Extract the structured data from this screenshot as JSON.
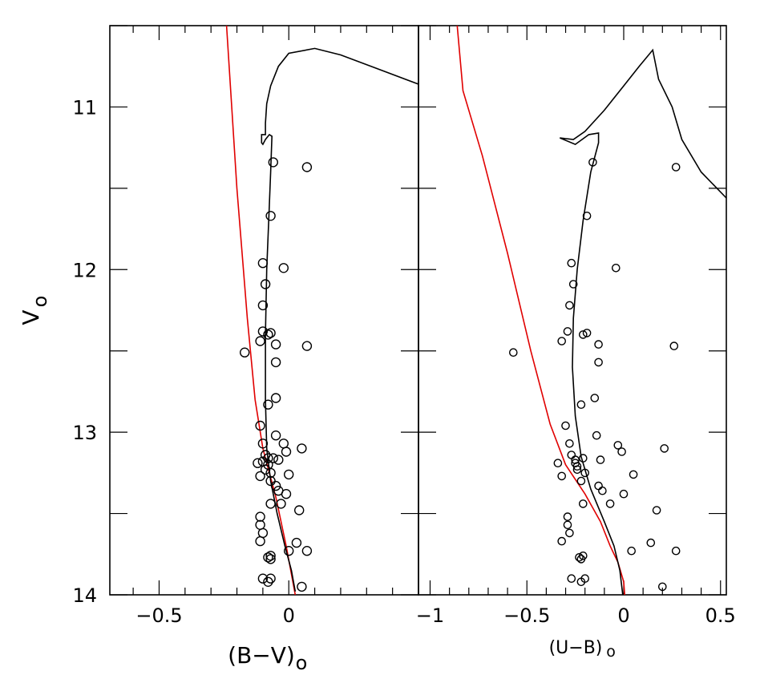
{
  "chart_data": [
    {
      "type": "scatter",
      "panel": "left",
      "xlabel": "(B−V)",
      "xlabel_subscript": "o",
      "ylabel": "V",
      "ylabel_subscript": "o",
      "xlim": [
        -0.69,
        0.5
      ],
      "ylim": [
        14.0,
        10.5
      ],
      "x_ticks_major": [
        -0.5,
        0
      ],
      "x_tick_labels": [
        "−0.5",
        "0"
      ],
      "y_ticks_major": [
        11,
        12,
        13,
        14
      ],
      "y_tick_labels": [
        "11",
        "12",
        "13",
        "14"
      ],
      "grid": false,
      "colors": {
        "isochrone": "#000000",
        "zams": "#e00000",
        "stars": "#000000"
      },
      "stars": [
        {
          "x": -0.06,
          "y": 11.34
        },
        {
          "x": 0.07,
          "y": 11.37
        },
        {
          "x": -0.07,
          "y": 11.67
        },
        {
          "x": -0.1,
          "y": 11.96
        },
        {
          "x": -0.02,
          "y": 11.99
        },
        {
          "x": -0.09,
          "y": 12.09
        },
        {
          "x": -0.1,
          "y": 12.22
        },
        {
          "x": -0.1,
          "y": 12.38
        },
        {
          "x": -0.07,
          "y": 12.39
        },
        {
          "x": -0.08,
          "y": 12.4
        },
        {
          "x": -0.11,
          "y": 12.44
        },
        {
          "x": -0.05,
          "y": 12.46
        },
        {
          "x": 0.07,
          "y": 12.47
        },
        {
          "x": -0.17,
          "y": 12.51
        },
        {
          "x": -0.05,
          "y": 12.57
        },
        {
          "x": -0.05,
          "y": 12.79
        },
        {
          "x": -0.08,
          "y": 12.83
        },
        {
          "x": -0.11,
          "y": 12.96
        },
        {
          "x": -0.05,
          "y": 13.02
        },
        {
          "x": -0.1,
          "y": 13.07
        },
        {
          "x": -0.02,
          "y": 13.07
        },
        {
          "x": 0.05,
          "y": 13.1
        },
        {
          "x": -0.01,
          "y": 13.12
        },
        {
          "x": -0.09,
          "y": 13.14
        },
        {
          "x": -0.08,
          "y": 13.16
        },
        {
          "x": -0.06,
          "y": 13.16
        },
        {
          "x": -0.04,
          "y": 13.17
        },
        {
          "x": -0.1,
          "y": 13.18
        },
        {
          "x": -0.12,
          "y": 13.19
        },
        {
          "x": -0.08,
          "y": 13.2
        },
        {
          "x": -0.09,
          "y": 13.23
        },
        {
          "x": -0.07,
          "y": 13.25
        },
        {
          "x": -0.11,
          "y": 13.27
        },
        {
          "x": 0.0,
          "y": 13.26
        },
        {
          "x": -0.07,
          "y": 13.3
        },
        {
          "x": -0.05,
          "y": 13.33
        },
        {
          "x": -0.04,
          "y": 13.36
        },
        {
          "x": -0.01,
          "y": 13.38
        },
        {
          "x": -0.07,
          "y": 13.44
        },
        {
          "x": -0.03,
          "y": 13.44
        },
        {
          "x": 0.04,
          "y": 13.48
        },
        {
          "x": -0.11,
          "y": 13.52
        },
        {
          "x": -0.11,
          "y": 13.57
        },
        {
          "x": -0.1,
          "y": 13.62
        },
        {
          "x": -0.11,
          "y": 13.67
        },
        {
          "x": 0.03,
          "y": 13.68
        },
        {
          "x": 0.0,
          "y": 13.73
        },
        {
          "x": 0.07,
          "y": 13.73
        },
        {
          "x": -0.07,
          "y": 13.76
        },
        {
          "x": -0.08,
          "y": 13.77
        },
        {
          "x": -0.07,
          "y": 13.78
        },
        {
          "x": -0.1,
          "y": 13.9
        },
        {
          "x": -0.07,
          "y": 13.9
        },
        {
          "x": -0.08,
          "y": 13.92
        },
        {
          "x": 0.05,
          "y": 13.95
        }
      ],
      "isochrone": [
        {
          "x": 0.5,
          "y": 10.86
        },
        {
          "x": 0.35,
          "y": 10.77
        },
        {
          "x": 0.2,
          "y": 10.68
        },
        {
          "x": 0.1,
          "y": 10.64
        },
        {
          "x": 0.0,
          "y": 10.67
        },
        {
          "x": -0.04,
          "y": 10.75
        },
        {
          "x": -0.07,
          "y": 10.87
        },
        {
          "x": -0.085,
          "y": 10.98
        },
        {
          "x": -0.09,
          "y": 11.1
        },
        {
          "x": -0.09,
          "y": 11.17
        },
        {
          "x": -0.105,
          "y": 11.17
        },
        {
          "x": -0.105,
          "y": 11.22
        },
        {
          "x": -0.1,
          "y": 11.23
        },
        {
          "x": -0.09,
          "y": 11.2
        },
        {
          "x": -0.075,
          "y": 11.17
        },
        {
          "x": -0.065,
          "y": 11.18
        },
        {
          "x": -0.07,
          "y": 11.4
        },
        {
          "x": -0.075,
          "y": 11.6
        },
        {
          "x": -0.085,
          "y": 12.0
        },
        {
          "x": -0.09,
          "y": 12.4
        },
        {
          "x": -0.09,
          "y": 12.8
        },
        {
          "x": -0.085,
          "y": 13.1
        },
        {
          "x": -0.07,
          "y": 13.3
        },
        {
          "x": -0.045,
          "y": 13.5
        },
        {
          "x": -0.015,
          "y": 13.7
        },
        {
          "x": 0.01,
          "y": 13.85
        },
        {
          "x": 0.025,
          "y": 13.98
        }
      ],
      "zams": [
        {
          "x": -0.24,
          "y": 10.5
        },
        {
          "x": -0.2,
          "y": 11.5
        },
        {
          "x": -0.16,
          "y": 12.3
        },
        {
          "x": -0.13,
          "y": 12.8
        },
        {
          "x": -0.1,
          "y": 13.1
        },
        {
          "x": -0.05,
          "y": 13.4
        },
        {
          "x": -0.01,
          "y": 13.7
        },
        {
          "x": 0.025,
          "y": 14.0
        }
      ]
    },
    {
      "type": "scatter",
      "panel": "right",
      "xlabel": "(U−B)",
      "xlabel_subscript": "o",
      "xlim": [
        -1.06,
        0.53
      ],
      "ylim": [
        14.0,
        10.5
      ],
      "x_ticks_major": [
        -1,
        -0.5,
        0,
        0.5
      ],
      "x_tick_labels": [
        "−1",
        "−0.5",
        "0",
        "0.5"
      ],
      "grid": false,
      "colors": {
        "isochrone": "#000000",
        "zams": "#e00000",
        "stars": "#000000"
      },
      "stars": [
        {
          "x": -0.16,
          "y": 11.34
        },
        {
          "x": 0.27,
          "y": 11.37
        },
        {
          "x": -0.19,
          "y": 11.67
        },
        {
          "x": -0.27,
          "y": 11.96
        },
        {
          "x": -0.04,
          "y": 11.99
        },
        {
          "x": -0.26,
          "y": 12.09
        },
        {
          "x": -0.28,
          "y": 12.22
        },
        {
          "x": -0.29,
          "y": 12.38
        },
        {
          "x": -0.19,
          "y": 12.39
        },
        {
          "x": -0.21,
          "y": 12.4
        },
        {
          "x": -0.32,
          "y": 12.44
        },
        {
          "x": -0.13,
          "y": 12.46
        },
        {
          "x": 0.26,
          "y": 12.47
        },
        {
          "x": -0.57,
          "y": 12.51
        },
        {
          "x": -0.13,
          "y": 12.57
        },
        {
          "x": -0.15,
          "y": 12.79
        },
        {
          "x": -0.22,
          "y": 12.83
        },
        {
          "x": -0.3,
          "y": 12.96
        },
        {
          "x": -0.14,
          "y": 13.02
        },
        {
          "x": -0.28,
          "y": 13.07
        },
        {
          "x": -0.03,
          "y": 13.08
        },
        {
          "x": 0.21,
          "y": 13.1
        },
        {
          "x": -0.01,
          "y": 13.12
        },
        {
          "x": -0.27,
          "y": 13.14
        },
        {
          "x": -0.21,
          "y": 13.16
        },
        {
          "x": -0.25,
          "y": 13.17
        },
        {
          "x": -0.12,
          "y": 13.17
        },
        {
          "x": -0.25,
          "y": 13.19
        },
        {
          "x": -0.34,
          "y": 13.19
        },
        {
          "x": -0.24,
          "y": 13.21
        },
        {
          "x": -0.24,
          "y": 13.23
        },
        {
          "x": -0.2,
          "y": 13.25
        },
        {
          "x": -0.32,
          "y": 13.27
        },
        {
          "x": 0.05,
          "y": 13.26
        },
        {
          "x": -0.22,
          "y": 13.3
        },
        {
          "x": -0.13,
          "y": 13.33
        },
        {
          "x": -0.11,
          "y": 13.36
        },
        {
          "x": 0.0,
          "y": 13.38
        },
        {
          "x": -0.21,
          "y": 13.44
        },
        {
          "x": -0.07,
          "y": 13.44
        },
        {
          "x": 0.17,
          "y": 13.48
        },
        {
          "x": -0.29,
          "y": 13.52
        },
        {
          "x": -0.29,
          "y": 13.57
        },
        {
          "x": -0.28,
          "y": 13.62
        },
        {
          "x": -0.32,
          "y": 13.67
        },
        {
          "x": 0.14,
          "y": 13.68
        },
        {
          "x": 0.04,
          "y": 13.73
        },
        {
          "x": 0.27,
          "y": 13.73
        },
        {
          "x": -0.21,
          "y": 13.76
        },
        {
          "x": -0.23,
          "y": 13.77
        },
        {
          "x": -0.22,
          "y": 13.78
        },
        {
          "x": -0.27,
          "y": 13.9
        },
        {
          "x": -0.2,
          "y": 13.9
        },
        {
          "x": -0.22,
          "y": 13.92
        },
        {
          "x": 0.2,
          "y": 13.95
        }
      ],
      "isochrone": [
        {
          "x": 0.53,
          "y": 11.56
        },
        {
          "x": 0.4,
          "y": 11.4
        },
        {
          "x": 0.3,
          "y": 11.2
        },
        {
          "x": 0.25,
          "y": 11.0
        },
        {
          "x": 0.18,
          "y": 10.83
        },
        {
          "x": 0.15,
          "y": 10.65
        },
        {
          "x": 0.08,
          "y": 10.75
        },
        {
          "x": 0.0,
          "y": 10.87
        },
        {
          "x": -0.1,
          "y": 11.02
        },
        {
          "x": -0.2,
          "y": 11.15
        },
        {
          "x": -0.26,
          "y": 11.2
        },
        {
          "x": -0.33,
          "y": 11.19
        },
        {
          "x": -0.25,
          "y": 11.23
        },
        {
          "x": -0.18,
          "y": 11.17
        },
        {
          "x": -0.13,
          "y": 11.16
        },
        {
          "x": -0.13,
          "y": 11.22
        },
        {
          "x": -0.17,
          "y": 11.4
        },
        {
          "x": -0.21,
          "y": 11.7
        },
        {
          "x": -0.24,
          "y": 12.0
        },
        {
          "x": -0.26,
          "y": 12.3
        },
        {
          "x": -0.265,
          "y": 12.6
        },
        {
          "x": -0.25,
          "y": 12.9
        },
        {
          "x": -0.22,
          "y": 13.15
        },
        {
          "x": -0.17,
          "y": 13.35
        },
        {
          "x": -0.1,
          "y": 13.55
        },
        {
          "x": -0.05,
          "y": 13.7
        },
        {
          "x": -0.02,
          "y": 13.85
        },
        {
          "x": -0.005,
          "y": 14.0
        }
      ],
      "zams": [
        {
          "x": -0.86,
          "y": 10.5
        },
        {
          "x": -0.83,
          "y": 10.9
        },
        {
          "x": -0.73,
          "y": 11.3
        },
        {
          "x": -0.6,
          "y": 11.9
        },
        {
          "x": -0.48,
          "y": 12.5
        },
        {
          "x": -0.38,
          "y": 12.95
        },
        {
          "x": -0.3,
          "y": 13.2
        },
        {
          "x": -0.2,
          "y": 13.38
        },
        {
          "x": -0.12,
          "y": 13.55
        },
        {
          "x": -0.07,
          "y": 13.7
        },
        {
          "x": -0.03,
          "y": 13.8
        },
        {
          "x": 0.0,
          "y": 13.92
        },
        {
          "x": 0.005,
          "y": 14.0
        }
      ]
    }
  ]
}
